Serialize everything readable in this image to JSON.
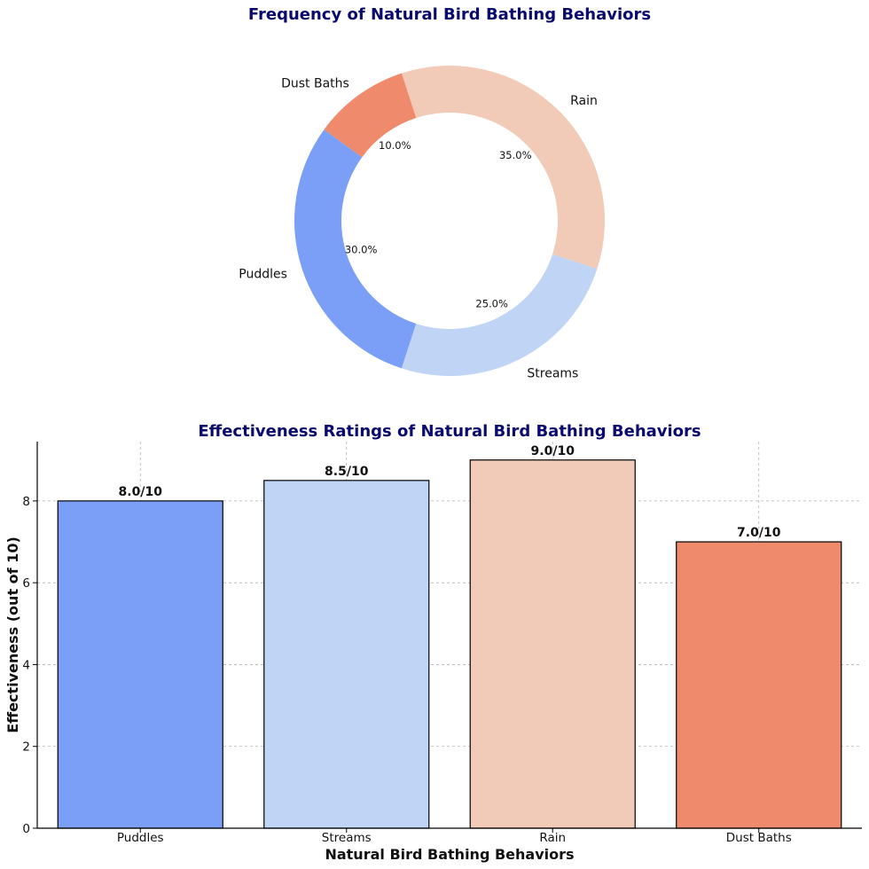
{
  "chart_data": [
    {
      "type": "pie",
      "variant": "donut",
      "title": "Frequency of Natural Bird Bathing Behaviors",
      "categories": [
        "Puddles",
        "Streams",
        "Rain",
        "Dust Baths"
      ],
      "values": [
        30,
        25,
        35,
        10
      ],
      "percent_labels": [
        "30.0%",
        "25.0%",
        "35.0%",
        "10.0%"
      ],
      "colors": [
        "#7b9ff7",
        "#c0d4f5",
        "#f1cbb7",
        "#ef8a6c"
      ],
      "start_angle_deg": 144,
      "direction": "counterclockwise"
    },
    {
      "type": "bar",
      "title": "Effectiveness Ratings of Natural Bird Bathing Behaviors",
      "categories": [
        "Puddles",
        "Streams",
        "Rain",
        "Dust Baths"
      ],
      "values": [
        8.0,
        8.5,
        9.0,
        7.0
      ],
      "data_labels": [
        "8.0/10",
        "8.5/10",
        "9.0/10",
        "7.0/10"
      ],
      "colors": [
        "#7b9ff7",
        "#c0d4f5",
        "#f1cbb7",
        "#ef8a6c"
      ],
      "xlabel": "Natural Bird Bathing Behaviors",
      "ylabel": "Effectiveness (out of 10)",
      "ylim": [
        0,
        9.45
      ],
      "yticks": [
        0,
        2,
        4,
        6,
        8
      ],
      "grid": true
    }
  ]
}
